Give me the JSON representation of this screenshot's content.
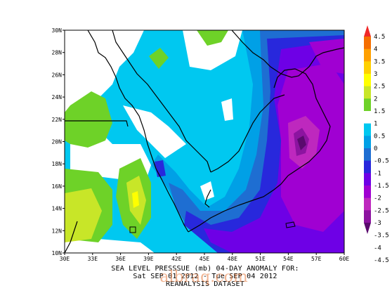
{
  "map": {
    "lat_labels": [
      "30N",
      "28N",
      "26N",
      "24N",
      "22N",
      "20N",
      "18N",
      "16N",
      "14N",
      "12N",
      "10N"
    ],
    "lon_labels": [
      "30E",
      "33E",
      "36E",
      "39E",
      "42E",
      "45E",
      "48E",
      "51E",
      "54E",
      "57E",
      "60E"
    ],
    "extent": {
      "lon_min": 30,
      "lon_max": 60,
      "lat_min": 10,
      "lat_max": 30
    }
  },
  "legend": {
    "labels": [
      "4.5",
      "4",
      "3.5",
      "3",
      "2.5",
      "2",
      "1.5",
      "1",
      "0.5",
      "0",
      "-0.5",
      "-1",
      "-1.5",
      "-2",
      "-2.5",
      "-3",
      "-3.5",
      "-4",
      "-4.5"
    ],
    "colors": [
      "#f02828",
      "#f56e00",
      "#ffa000",
      "#ffd000",
      "#ffff00",
      "#c8e628",
      "#6ed228",
      "#ffffff",
      "#00c8f0",
      "#00a0e6",
      "#1e6ed2",
      "#2828dc",
      "#6e00e6",
      "#a000d2",
      "#be28be",
      "#8c14a0",
      "#5a0a6e"
    ],
    "colors_note": "top-arrow to bottom-arrow"
  },
  "caption": {
    "line1": "SEA LEVEL PRESSSUE (mb)   04-DAY ANOMALY FOR:",
    "line2": "Sat SEP 01 2012 - Tue SEP 04 2012",
    "line3": "REANALYSIS DATASET"
  },
  "watermark": "albraq.com"
}
